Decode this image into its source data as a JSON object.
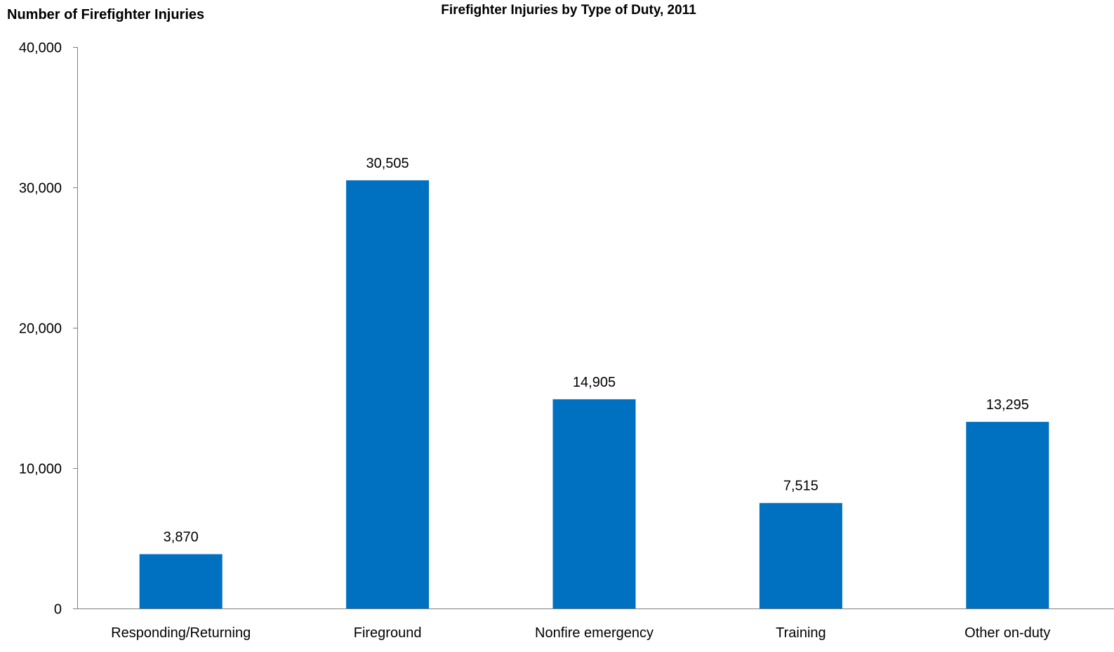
{
  "chart_data": {
    "type": "bar",
    "title": "Firefighter Injuries by Type of Duty, 2011",
    "ylabel": "Number of Firefighter Injuries",
    "xlabel": "",
    "categories": [
      "Responding/Returning",
      "Fireground",
      "Nonfire emergency",
      "Training",
      "Other on-duty"
    ],
    "values": [
      3870,
      30505,
      14905,
      7515,
      13295
    ],
    "value_labels": [
      "3,870",
      "30,505",
      "14,905",
      "7,515",
      "13,295"
    ],
    "ylim": [
      0,
      40000
    ],
    "yticks": [
      0,
      10000,
      20000,
      30000,
      40000
    ],
    "ytick_labels": [
      "0",
      "10,000",
      "20,000",
      "30,000",
      "40,000"
    ],
    "grid": false,
    "legend": "none",
    "bar_color": "#0070C0"
  }
}
